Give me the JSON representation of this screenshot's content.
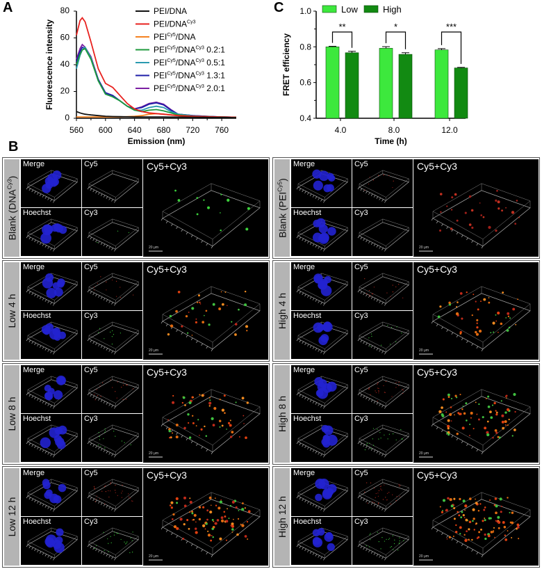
{
  "panel_labels": {
    "a": "A",
    "b": "B",
    "c": "C"
  },
  "chart_data": [
    {
      "type": "line",
      "xlabel": "Emission (nm)",
      "ylabel": "Fluorescence intensity",
      "xlim": [
        560,
        780
      ],
      "ylim": [
        0,
        80
      ],
      "xticks": [
        560,
        600,
        640,
        680,
        720,
        760
      ],
      "yticks": [
        0,
        20,
        40,
        60,
        80
      ],
      "legend_position": "top-right",
      "x": [
        560,
        565,
        568,
        572,
        580,
        590,
        600,
        610,
        620,
        630,
        640,
        650,
        660,
        670,
        680,
        690,
        700,
        720,
        740,
        760,
        780
      ],
      "series": [
        {
          "name": "PEI/DNA",
          "parts": [
            "PEI",
            "",
            "/DNA",
            "",
            ""
          ],
          "color": "#111111",
          "values": [
            5,
            4,
            3.5,
            3,
            2.5,
            2,
            1.5,
            1.3,
            1.2,
            1.1,
            1,
            1,
            1,
            1,
            1,
            0.9,
            0.9,
            0.8,
            0.7,
            0.6,
            0.5
          ]
        },
        {
          "name": "PEI/DNA^Cy3",
          "parts": [
            "PEI",
            "",
            "/DNA",
            "Cy3",
            ""
          ],
          "color": "#e8211e",
          "values": [
            62,
            73,
            75,
            72,
            57,
            37,
            26,
            23,
            17,
            11,
            7,
            5,
            4,
            3.5,
            3,
            2.5,
            2,
            1.5,
            1.2,
            1,
            0.8
          ]
        },
        {
          "name": "PEI^Cy5/DNA",
          "parts": [
            "PEI",
            "Cy5",
            "/DNA",
            "",
            ""
          ],
          "color": "#f58220",
          "values": [
            1,
            1,
            1,
            1,
            1,
            1,
            1,
            1,
            1,
            1.2,
            1.5,
            2,
            3,
            3.5,
            3,
            2.5,
            2,
            1.2,
            1,
            0.8,
            0.6
          ]
        },
        {
          "name": "PEI^Cy5/DNA^Cy3 0.2:1",
          "parts": [
            "PEI",
            "Cy5",
            "/DNA",
            "Cy3",
            " 0.2:1"
          ],
          "color": "#1e9a3c",
          "values": [
            40,
            48,
            51,
            52,
            44,
            28,
            18,
            16,
            13,
            9,
            6,
            5,
            6,
            6.5,
            5.5,
            4,
            2.5,
            1.5,
            1.2,
            1,
            0.8
          ]
        },
        {
          "name": "PEI^Cy5/DNA^Cy3 0.5:1",
          "parts": [
            "PEI",
            "Cy5",
            "/DNA",
            "Cy3",
            " 0.5:1"
          ],
          "color": "#2a9ab0",
          "values": [
            37,
            47,
            51,
            53,
            45,
            28,
            18,
            16,
            13,
            9,
            6,
            6,
            8,
            9,
            8,
            5,
            3,
            1.8,
            1.3,
            1,
            0.8
          ]
        },
        {
          "name": "PEI^Cy5/DNA^Cy3 1.3:1",
          "parts": [
            "PEI",
            "Cy5",
            "/DNA",
            "Cy3",
            " 1.3:1"
          ],
          "color": "#1d1da8",
          "values": [
            42,
            50,
            53,
            52,
            45,
            29,
            19,
            17,
            13,
            9,
            7,
            8,
            10.5,
            11.5,
            10,
            6,
            3,
            2,
            1.4,
            1,
            0.8
          ]
        },
        {
          "name": "PEI^Cy5/DNA^Cy3 2.0:1",
          "parts": [
            "PEI",
            "Cy5",
            "/DNA",
            "Cy3",
            " 2.0:1"
          ],
          "color": "#7b1fa2",
          "values": [
            44,
            52,
            55,
            53,
            46,
            29,
            19,
            17,
            13,
            9,
            7,
            8.5,
            11,
            12,
            10.5,
            6.5,
            3,
            2,
            1.4,
            1,
            0.8
          ]
        }
      ]
    },
    {
      "type": "bar",
      "xlabel": "Time (h)",
      "ylabel": "FRET efficiency",
      "ylim": [
        0.4,
        1.0
      ],
      "yticks": [
        "0.4",
        "0.6",
        "0.8",
        "1.0"
      ],
      "categories": [
        "4.0",
        "8.0",
        "12.0"
      ],
      "legend_position": "top-left",
      "series": [
        {
          "name": "Low",
          "color": "#3de83d",
          "values": [
            0.8,
            0.792,
            0.783
          ],
          "errors": [
            0.003,
            0.009,
            0.007
          ]
        },
        {
          "name": "High",
          "color": "#128a12",
          "values": [
            0.767,
            0.758,
            0.682
          ],
          "errors": [
            0.008,
            0.009,
            0.003
          ]
        }
      ],
      "significance": [
        "**",
        "*",
        "***"
      ]
    }
  ],
  "microscopy": {
    "tile_labels": {
      "merge": "Merge",
      "cy5": "Cy5",
      "hoechst": "Hoechst",
      "cy3": "Cy3",
      "combined": "Cy5+Cy3"
    },
    "scale_bar": "20 μm",
    "panels": [
      {
        "label": "Blank (DNA",
        "sup": "Cy3",
        "tail": ")",
        "dots": "green",
        "density": 12
      },
      {
        "label": "Blank (PEI",
        "sup": "Cy5",
        "tail": ")",
        "dots": "red",
        "density": 30
      },
      {
        "label": "Low 4 h",
        "sup": "",
        "tail": "",
        "dots": "mix",
        "density": 35
      },
      {
        "label": "High 4 h",
        "sup": "",
        "tail": "",
        "dots": "mix",
        "density": 45
      },
      {
        "label": "Low 8 h",
        "sup": "",
        "tail": "",
        "dots": "mix",
        "density": 60
      },
      {
        "label": "High 8 h",
        "sup": "",
        "tail": "",
        "dots": "mix",
        "density": 80
      },
      {
        "label": "Low 12 h",
        "sup": "",
        "tail": "",
        "dots": "mix",
        "density": 90
      },
      {
        "label": "High 12 h",
        "sup": "",
        "tail": "",
        "dots": "mix",
        "density": 100
      }
    ]
  }
}
